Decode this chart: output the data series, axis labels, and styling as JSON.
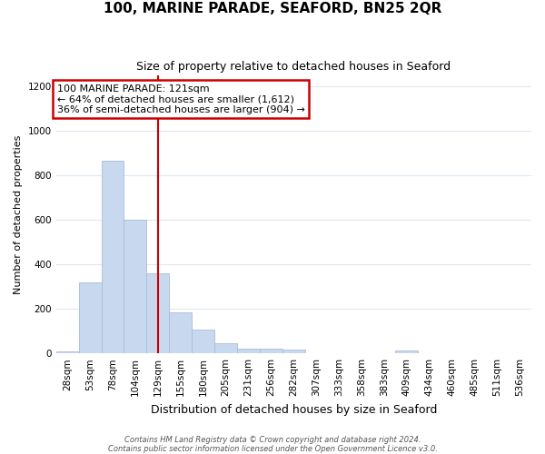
{
  "title": "100, MARINE PARADE, SEAFORD, BN25 2QR",
  "subtitle": "Size of property relative to detached houses in Seaford",
  "xlabel": "Distribution of detached houses by size in Seaford",
  "ylabel": "Number of detached properties",
  "bar_labels": [
    "28sqm",
    "53sqm",
    "78sqm",
    "104sqm",
    "129sqm",
    "155sqm",
    "180sqm",
    "205sqm",
    "231sqm",
    "256sqm",
    "282sqm",
    "307sqm",
    "333sqm",
    "358sqm",
    "383sqm",
    "409sqm",
    "434sqm",
    "460sqm",
    "485sqm",
    "511sqm",
    "536sqm"
  ],
  "bar_values": [
    10,
    320,
    865,
    600,
    360,
    185,
    105,
    45,
    20,
    20,
    18,
    0,
    0,
    0,
    0,
    12,
    0,
    0,
    0,
    0,
    0
  ],
  "bar_color": "#c8d8ee",
  "bar_edge_color": "#a8bcd8",
  "vline_x_index": 4,
  "vline_color": "#cc0000",
  "annotation_text": "100 MARINE PARADE: 121sqm\n← 64% of detached houses are smaller (1,612)\n36% of semi-detached houses are larger (904) →",
  "annotation_box_edgecolor": "#cc0000",
  "ylim": [
    0,
    1250
  ],
  "yticks": [
    0,
    200,
    400,
    600,
    800,
    1000,
    1200
  ],
  "footer_line1": "Contains HM Land Registry data © Crown copyright and database right 2024.",
  "footer_line2": "Contains public sector information licensed under the Open Government Licence v3.0.",
  "grid_color": "#dce8f0",
  "background_color": "#ffffff",
  "title_fontsize": 11,
  "subtitle_fontsize": 9,
  "xlabel_fontsize": 9,
  "ylabel_fontsize": 8,
  "tick_fontsize": 7.5,
  "annotation_fontsize": 8,
  "footer_fontsize": 6
}
